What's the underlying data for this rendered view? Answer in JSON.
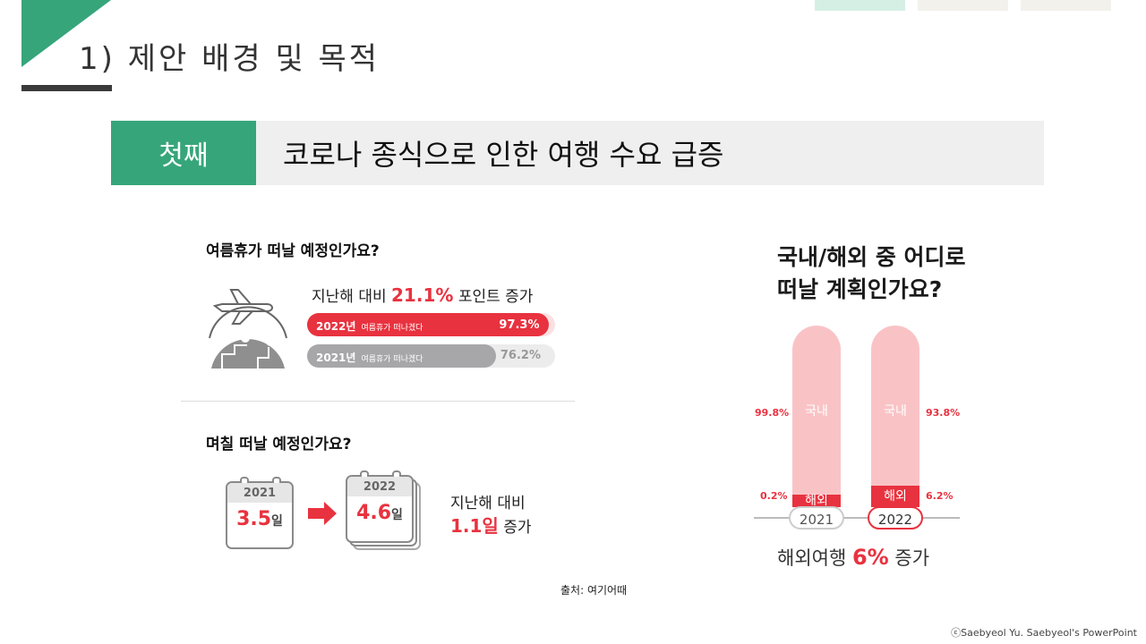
{
  "header": {
    "title": "1) 제안 배경 및 목적",
    "tab_colors": [
      "#d6efe4",
      "#f3f1ec",
      "#f3f1ec"
    ]
  },
  "banner": {
    "label": "첫째",
    "text": "코로나 종식으로 인한 여행 수요 급증"
  },
  "left": {
    "q1": "여름휴가 떠날 예정인가요?",
    "compare_prefix": "지난해 대비",
    "compare_value": "21.1%",
    "compare_suffix": "포인트 증가",
    "bars": [
      {
        "year": "2022년",
        "note": "여름휴가 떠나겠다",
        "value_label": "97.3%",
        "value": 97.3
      },
      {
        "year": "2021년",
        "note": "여름휴가 떠나겠다",
        "value_label": "76.2%",
        "value": 76.2
      }
    ],
    "q2": "며칠 떠날 예정인가요?",
    "cal_2021": {
      "year": "2021",
      "days": "3.5",
      "unit": "일"
    },
    "cal_2022": {
      "year": "2022",
      "days": "4.6",
      "unit": "일"
    },
    "days_prefix": "지난해 대비",
    "days_value": "1.1일",
    "days_suffix": "증가"
  },
  "right": {
    "title_line1": "국내/해외 중 어디로",
    "title_line2": "떠날 계획인가요?",
    "domestic_label": "국내",
    "overseas_label": "해외",
    "y2021": {
      "year": "2021",
      "domestic": "99.8%",
      "overseas": "0.2%",
      "overseas_value": 0.2
    },
    "y2022": {
      "year": "2022",
      "domestic": "93.8%",
      "overseas": "6.2%",
      "overseas_value": 6.2
    },
    "summary_prefix": "해외여행",
    "summary_value": "6%",
    "summary_suffix": "증가"
  },
  "source": "출처: 여기어때",
  "copyright": "ⓒSaebyeol Yu. Saebyeol's PowerPoint",
  "colors": {
    "accent": "#37a57a",
    "red": "#e8323f",
    "pink": "#f9c3c6",
    "gray_bar": "#a7a7aa"
  }
}
